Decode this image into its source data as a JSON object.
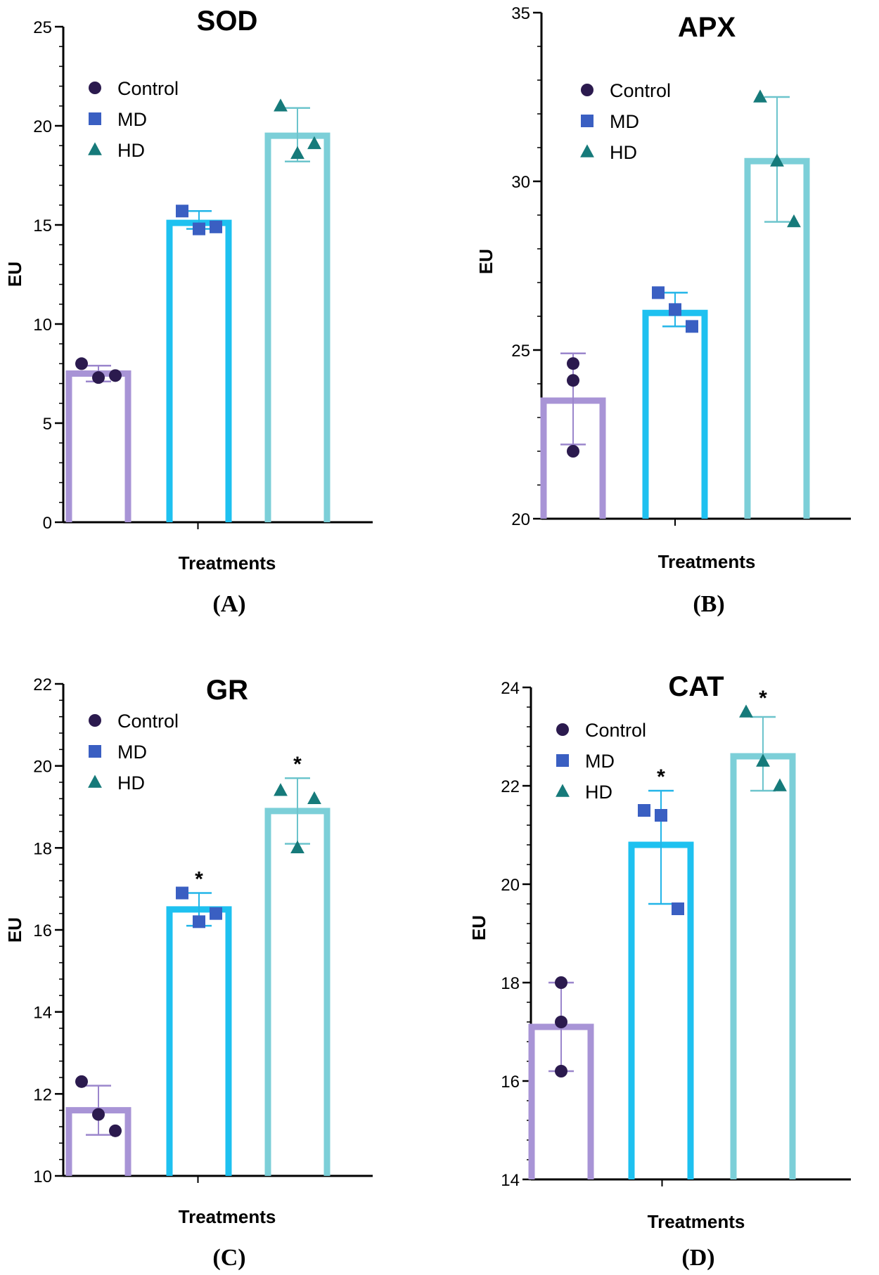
{
  "chart_data": [
    {
      "type": "bar",
      "panel_label": "(A)",
      "title": "SOD",
      "xlabel": "Treatments",
      "ylabel": "EU",
      "ylim": [
        0,
        25
      ],
      "yticks": [
        0,
        5,
        10,
        15,
        20,
        25
      ],
      "categories": [
        "Control",
        "MD",
        "HD"
      ],
      "values": [
        7.5,
        15.1,
        19.5
      ],
      "error": [
        [
          7.1,
          7.9
        ],
        [
          14.8,
          15.7
        ],
        [
          18.2,
          20.9
        ]
      ],
      "points": [
        [
          8.0,
          7.3,
          7.4
        ],
        [
          15.7,
          14.8,
          14.9
        ],
        [
          21.0,
          18.6,
          19.1
        ]
      ],
      "significance": [
        "",
        "",
        ""
      ],
      "legend": [
        "Control",
        "MD",
        "HD"
      ]
    },
    {
      "type": "bar",
      "panel_label": "(B)",
      "title": "APX",
      "xlabel": "Treatments",
      "ylabel": "EU",
      "ylim": [
        20,
        35
      ],
      "yticks": [
        20,
        25,
        30,
        35
      ],
      "categories": [
        "Control",
        "MD",
        "HD"
      ],
      "values": [
        23.5,
        26.1,
        30.6
      ],
      "error": [
        [
          22.2,
          24.9
        ],
        [
          25.7,
          26.7
        ],
        [
          28.8,
          32.5
        ]
      ],
      "points": [
        [
          24.6,
          24.1,
          22.0
        ],
        [
          26.7,
          26.2,
          25.7
        ],
        [
          32.5,
          30.6,
          28.8
        ]
      ],
      "significance": [
        "",
        "",
        ""
      ],
      "legend": [
        "Control",
        "MD",
        "HD"
      ]
    },
    {
      "type": "bar",
      "panel_label": "(C)",
      "title": "GR",
      "xlabel": "Treatments",
      "ylabel": "EU",
      "ylim": [
        10,
        22
      ],
      "yticks": [
        10,
        12,
        14,
        16,
        18,
        20,
        22
      ],
      "categories": [
        "Control",
        "MD",
        "HD"
      ],
      "values": [
        11.6,
        16.5,
        18.9
      ],
      "error": [
        [
          11.0,
          12.2
        ],
        [
          16.1,
          16.9
        ],
        [
          18.1,
          19.7
        ]
      ],
      "points": [
        [
          12.3,
          11.5,
          11.1
        ],
        [
          16.9,
          16.2,
          16.4
        ],
        [
          19.4,
          18.0,
          19.2
        ]
      ],
      "significance": [
        "",
        "*",
        "*"
      ],
      "legend": [
        "Control",
        "MD",
        "HD"
      ]
    },
    {
      "type": "bar",
      "panel_label": "(D)",
      "title": "CAT",
      "xlabel": "Treatments",
      "ylabel": "EU",
      "ylim": [
        14,
        24
      ],
      "yticks": [
        14,
        16,
        18,
        20,
        22,
        24
      ],
      "categories": [
        "Control",
        "MD",
        "HD"
      ],
      "values": [
        17.1,
        20.8,
        22.6
      ],
      "error": [
        [
          16.2,
          18.0
        ],
        [
          19.6,
          21.9
        ],
        [
          21.9,
          23.4
        ]
      ],
      "points": [
        [
          18.0,
          17.2,
          16.2
        ],
        [
          21.5,
          21.4,
          19.5
        ],
        [
          23.5,
          22.5,
          22.0
        ]
      ],
      "significance": [
        "",
        "*",
        "*"
      ],
      "legend": [
        "Control",
        "MD",
        "HD"
      ]
    }
  ],
  "colors": {
    "bars": [
      "#a894d6",
      "#1ec1f0",
      "#7ccfd8"
    ],
    "markers": [
      "#2b1a4e",
      "#3a5fc2",
      "#167a7a"
    ],
    "error": [
      "#9b86cc",
      "#22b5e8",
      "#6cc4cc"
    ]
  },
  "marker_shapes": [
    "circle",
    "square",
    "triangle"
  ]
}
